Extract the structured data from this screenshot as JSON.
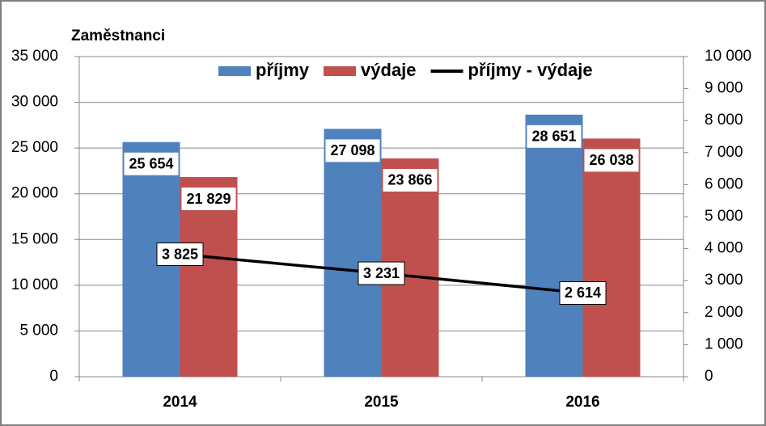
{
  "chart_data": {
    "type": "bar",
    "y_axis_label": "Zaměstnanci",
    "categories": [
      "2014",
      "2015",
      "2016"
    ],
    "series": [
      {
        "name": "příjmy",
        "type": "bar",
        "color": "#4f81bd",
        "label_color": "#376092",
        "values": [
          25654,
          27098,
          28651
        ],
        "value_labels": [
          "25 654",
          "27 098",
          "28 651"
        ]
      },
      {
        "name": "výdaje",
        "type": "bar",
        "color": "#c0504d",
        "label_color": "#c00000",
        "values": [
          21829,
          23866,
          26038
        ],
        "value_labels": [
          "21 829",
          "23 866",
          "26 038"
        ]
      },
      {
        "name": "příjmy - výdaje",
        "type": "line",
        "axis": "y2",
        "color": "#000000",
        "label_color": "#000000",
        "values": [
          3825,
          3231,
          2614
        ],
        "value_labels": [
          "3 825",
          "3 231",
          "2 614"
        ]
      }
    ],
    "ylim": [
      0,
      35000
    ],
    "yticks": [
      0,
      {
        "value": 5000,
        "label": "5 000"
      },
      {
        "value": 10000,
        "label": "10 000"
      },
      {
        "value": 15000,
        "label": "15 000"
      },
      {
        "value": 20000,
        "label": "20 000"
      },
      {
        "value": 25000,
        "label": "25 000"
      },
      {
        "value": 30000,
        "label": "30 000"
      },
      {
        "value": 35000,
        "label": "35 000"
      }
    ],
    "y2lim": [
      0,
      10000
    ],
    "y2ticks": [
      0,
      {
        "value": 1000,
        "label": "1 000"
      },
      {
        "value": 2000,
        "label": "2 000"
      },
      {
        "value": 3000,
        "label": "3 000"
      },
      {
        "value": 4000,
        "label": "4 000"
      },
      {
        "value": 5000,
        "label": "5 000"
      },
      {
        "value": 6000,
        "label": "6 000"
      },
      {
        "value": 7000,
        "label": "7 000"
      },
      {
        "value": 8000,
        "label": "8 000"
      },
      {
        "value": 9000,
        "label": "9 000"
      },
      {
        "value": 10000,
        "label": "10 000"
      }
    ],
    "grid": true,
    "legend": "top"
  }
}
